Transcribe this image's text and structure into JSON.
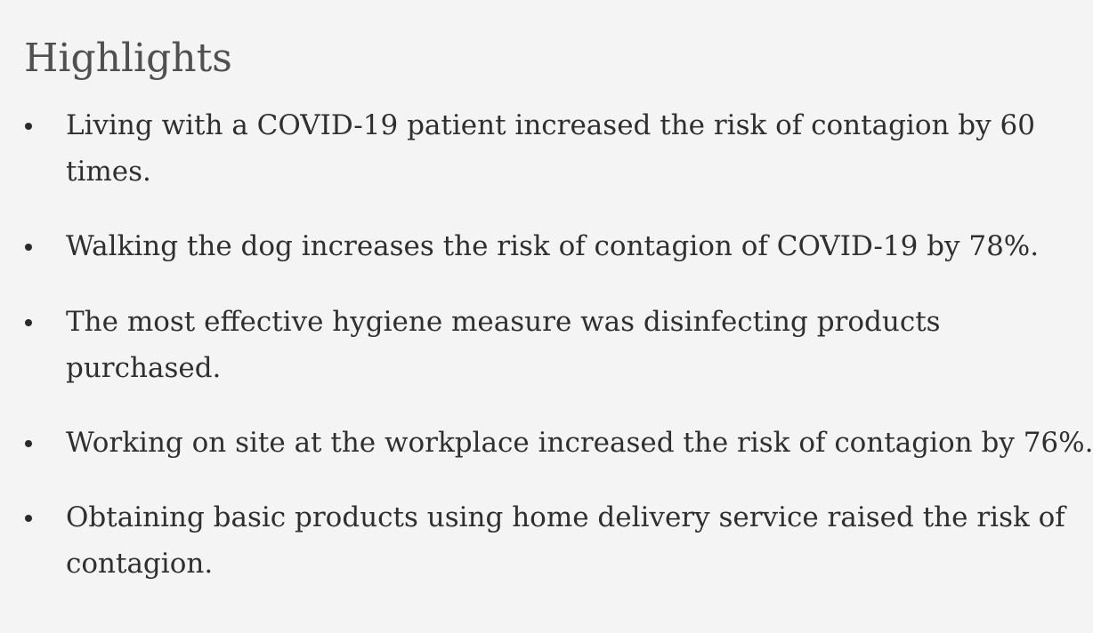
{
  "highlights": {
    "title": "Highlights",
    "items": [
      {
        "line1": "Living with a COVID-19 patient increased the risk of contagion by 60",
        "line2": "times."
      },
      {
        "line1": "Walking the dog increases the risk of contagion of COVID-19 by 78%.",
        "line2": ""
      },
      {
        "line1": "The most effective hygiene measure was disinfecting products",
        "line2": "purchased."
      },
      {
        "line1": "Working on site at the workplace increased the risk of contagion by 76%.",
        "line2": ""
      },
      {
        "line1": "Obtaining basic products using home delivery service raised the risk of",
        "line2": "contagion."
      }
    ]
  }
}
